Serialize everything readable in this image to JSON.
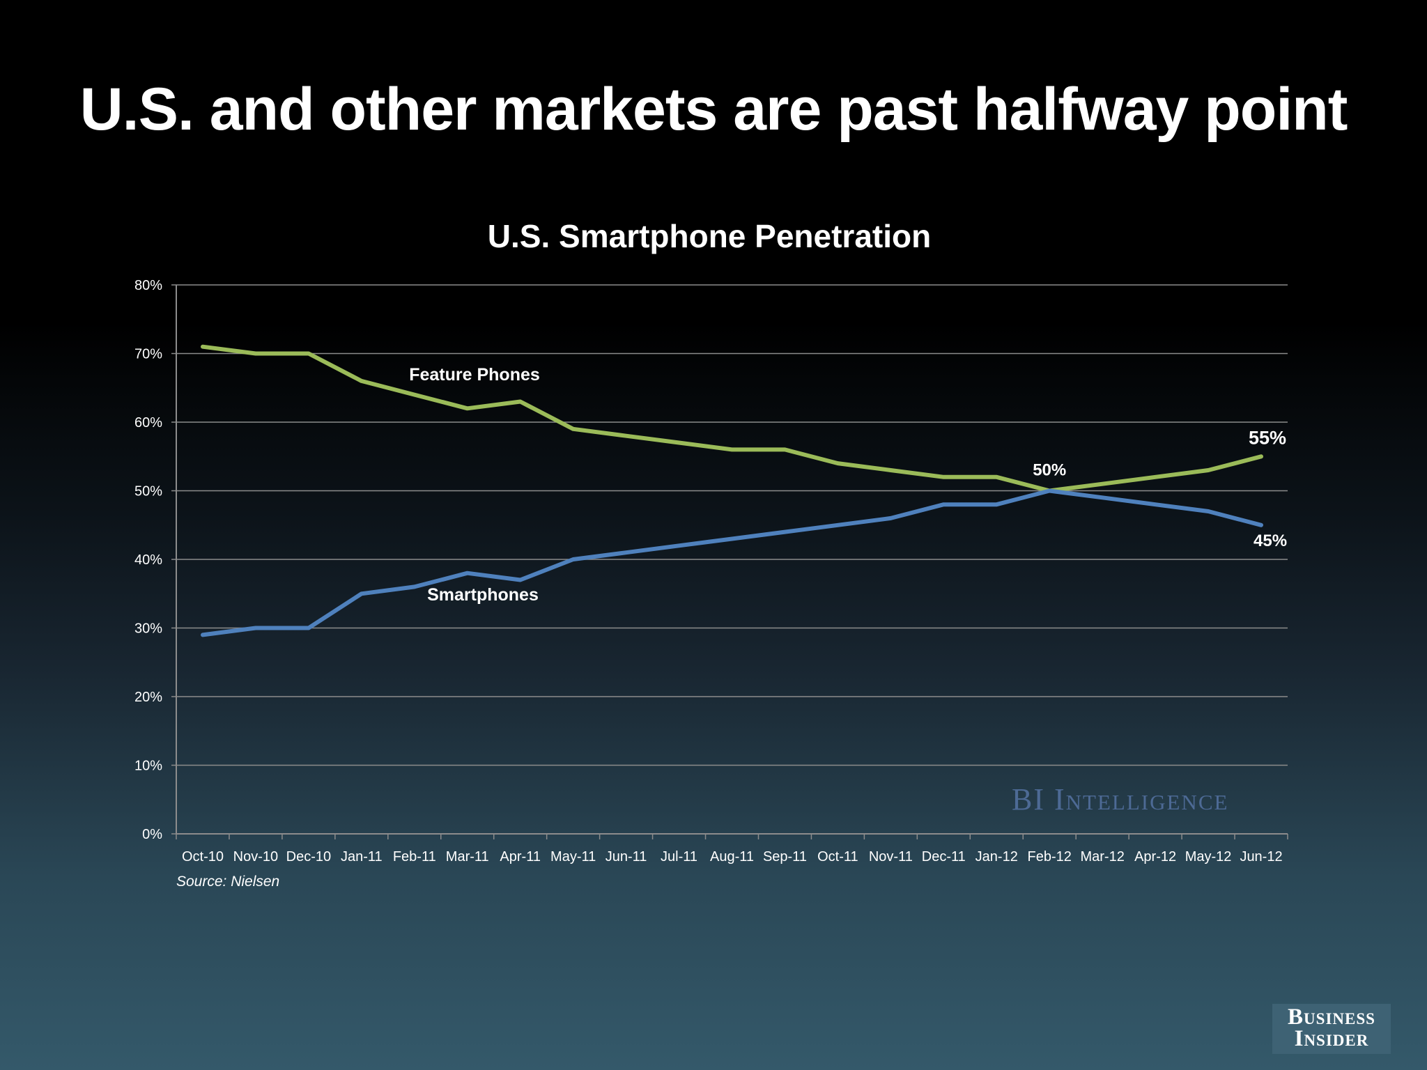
{
  "slide": {
    "title": "U.S. and other markets are past halfway point",
    "source": "Source: Nielsen",
    "watermark": "BI Intelligence",
    "logo_line1": "Business",
    "logo_line2": "Insider"
  },
  "colors": {
    "feature_phones": "#9bbb59",
    "smartphones": "#4f81bd",
    "gridline": "#8c8c8c",
    "watermark": "#4d6a95"
  },
  "chart_data": {
    "type": "line",
    "title": "U.S. Smartphone Penetration",
    "xlabel": "",
    "ylabel": "",
    "ylim": [
      0,
      80
    ],
    "yticks": [
      "0%",
      "10%",
      "20%",
      "30%",
      "40%",
      "50%",
      "60%",
      "70%",
      "80%"
    ],
    "grid": true,
    "categories": [
      "Oct-10",
      "Nov-10",
      "Dec-10",
      "Jan-11",
      "Feb-11",
      "Mar-11",
      "Apr-11",
      "May-11",
      "Jun-11",
      "Jul-11",
      "Aug-11",
      "Sep-11",
      "Oct-11",
      "Nov-11",
      "Dec-11",
      "Jan-12",
      "Feb-12",
      "Mar-12",
      "Apr-12",
      "May-12",
      "Jun-12"
    ],
    "series": [
      {
        "name": "Feature Phones",
        "color": "#9bbb59",
        "values": [
          71,
          70,
          70,
          66,
          64,
          62,
          63,
          59,
          58,
          57,
          56,
          56,
          54,
          53,
          52,
          52,
          50,
          51,
          52,
          53,
          55
        ]
      },
      {
        "name": "Smartphones",
        "color": "#4f81bd",
        "values": [
          29,
          30,
          30,
          35,
          36,
          38,
          37,
          40,
          41,
          42,
          43,
          44,
          45,
          46,
          48,
          48,
          50,
          49,
          48,
          47,
          45
        ]
      }
    ],
    "annotations": [
      {
        "text": "50%",
        "category": "Feb-12",
        "value": 50
      },
      {
        "text": "55%",
        "category": "Jun-12",
        "value": 55
      },
      {
        "text": "45%",
        "category": "Jun-12",
        "value": 45
      }
    ]
  }
}
